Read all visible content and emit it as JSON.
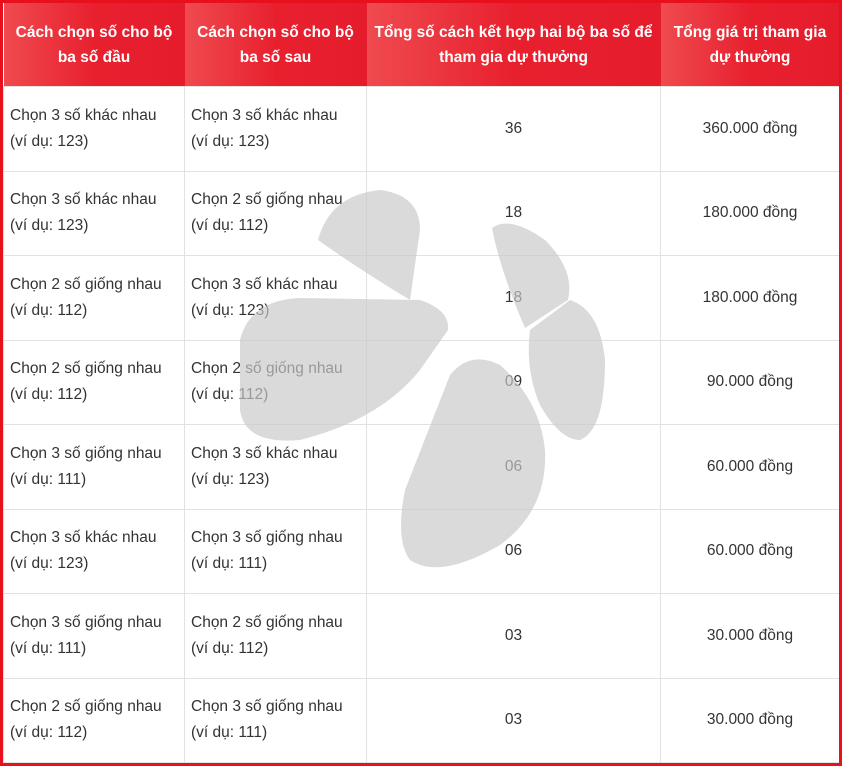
{
  "colors": {
    "header_bg": "#e8202e",
    "border": "#e8101c",
    "watermark": "#cfcfcf"
  },
  "watermark_icon": "star-petal-logo",
  "headers": [
    "Cách chọn số cho bộ ba số đầu",
    "Cách chọn số cho bộ ba số sau",
    "Tổng số cách kết hợp hai bộ ba số để tham gia dự thưởng",
    "Tổng giá trị tham gia dự thưởng"
  ],
  "rows": [
    {
      "first": "Chọn 3 số khác nhau",
      "first_ex": "(ví dụ: 123)",
      "second": "Chọn 3 số khác nhau",
      "second_ex": "(ví dụ: 123)",
      "count": "36",
      "value": "360.000 đồng"
    },
    {
      "first": "Chọn 3 số khác nhau",
      "first_ex": "(ví dụ: 123)",
      "second": "Chọn 2 số giống nhau",
      "second_ex": "(ví dụ: 112)",
      "count": "18",
      "value": "180.000 đồng"
    },
    {
      "first": "Chọn 2 số giống nhau",
      "first_ex": "(ví dụ: 112)",
      "second": "Chọn 3 số khác nhau",
      "second_ex": "(ví dụ: 123)",
      "count": "18",
      "value": "180.000 đồng"
    },
    {
      "first": "Chọn 2 số giống nhau",
      "first_ex": "(ví dụ: 112)",
      "second": "Chọn 2 số giống nhau",
      "second_ex": "(ví dụ: 112)",
      "count": "09",
      "value": "90.000 đồng"
    },
    {
      "first": "Chọn 3 số giống nhau",
      "first_ex": "(ví dụ: 111)",
      "second": "Chọn 3 số khác nhau",
      "second_ex": "(ví dụ: 123)",
      "count": "06",
      "value": "60.000 đồng"
    },
    {
      "first": "Chọn 3 số khác nhau",
      "first_ex": "(ví dụ: 123)",
      "second": "Chọn 3 số giống nhau",
      "second_ex": "(ví dụ: 111)",
      "count": "06",
      "value": "60.000 đồng"
    },
    {
      "first": "Chọn 3 số giống nhau",
      "first_ex": "(ví dụ: 111)",
      "second": "Chọn 2 số giống nhau",
      "second_ex": "(ví dụ: 112)",
      "count": "03",
      "value": "30.000 đồng"
    },
    {
      "first": "Chọn 2 số giống nhau",
      "first_ex": "(ví dụ: 112)",
      "second": "Chọn 3 số giống nhau",
      "second_ex": "(ví dụ: 111)",
      "count": "03",
      "value": "30.000 đồng"
    }
  ]
}
